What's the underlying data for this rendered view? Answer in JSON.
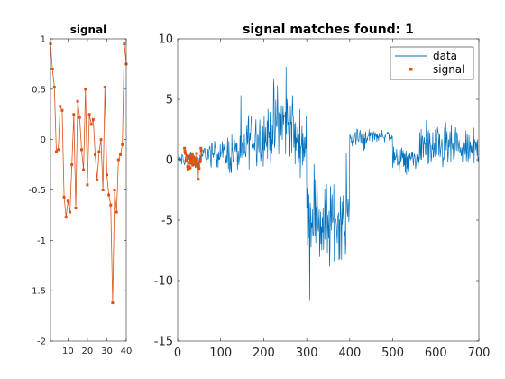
{
  "chart_data": [
    {
      "type": "line",
      "title": "signal",
      "xlabel": "",
      "ylabel": "",
      "xlim": [
        1,
        40
      ],
      "ylim": [
        -2,
        1
      ],
      "xticks": [
        10,
        20,
        30,
        40
      ],
      "xtick_labels": [
        "10",
        "20",
        "30",
        "40"
      ],
      "yticks": [
        -2,
        -1.5,
        -1,
        -0.5,
        0,
        0.5,
        1
      ],
      "ytick_labels": [
        "-2",
        "-1.5",
        "-1",
        "-0.5",
        "0",
        "0.5",
        "1"
      ],
      "grid": false,
      "series": [
        {
          "color": "#D95319",
          "marker": "square",
          "x": [
            1,
            2,
            3,
            4,
            5,
            6,
            7,
            8,
            9,
            10,
            11,
            12,
            13,
            14,
            15,
            16,
            17,
            18,
            19,
            20,
            21,
            22,
            23,
            24,
            25,
            26,
            27,
            28,
            29,
            30,
            31,
            32,
            33,
            34,
            35,
            36,
            37,
            38,
            39,
            40
          ],
          "y": [
            0.95,
            0.7,
            0.52,
            -0.12,
            -0.1,
            0.33,
            0.29,
            -0.57,
            -0.77,
            -0.61,
            -0.72,
            -0.25,
            0.25,
            -0.68,
            0.38,
            0.22,
            -0.1,
            -0.3,
            0.5,
            -0.45,
            0.25,
            0.15,
            0.2,
            -0.15,
            -0.4,
            -0.12,
            0.0,
            -0.5,
            0.52,
            -0.35,
            -0.55,
            -0.65,
            -1.62,
            -0.5,
            -0.72,
            -0.2,
            -0.15,
            -0.05,
            0.95,
            0.75
          ]
        }
      ]
    },
    {
      "type": "line",
      "title": "signal matches found: 1",
      "xlabel": "",
      "ylabel": "",
      "xlim": [
        0,
        700
      ],
      "ylim": [
        -15,
        10
      ],
      "xticks": [
        0,
        100,
        200,
        300,
        400,
        500,
        600,
        700
      ],
      "xtick_labels": [
        "0",
        "100",
        "200",
        "300",
        "400",
        "500",
        "600",
        "700"
      ],
      "yticks": [
        -15,
        -10,
        -5,
        0,
        5,
        10
      ],
      "ytick_labels": [
        "-15",
        "-10",
        "-5",
        "0",
        "5",
        "10"
      ],
      "grid": false,
      "legend_position": "top-right",
      "series": [
        {
          "name": "data",
          "color": "#0072BD",
          "x_start": 1,
          "segments": [
            {
              "from": 1,
              "to": 60,
              "center": 0.0,
              "amp": 0.9
            },
            {
              "from": 60,
              "to": 110,
              "center": 0.5,
              "amp": 1.5
            },
            {
              "from": 110,
              "to": 160,
              "center": 0.5,
              "amp": 2.5
            },
            {
              "from": 160,
              "to": 220,
              "center": 2.0,
              "amp": 3.5
            },
            {
              "from": 220,
              "to": 270,
              "center": 3.0,
              "amp": 4.5
            },
            {
              "from": 270,
              "to": 300,
              "center": 1.5,
              "amp": 3.5
            },
            {
              "from": 300,
              "to": 330,
              "center": -4.5,
              "amp": 5.0
            },
            {
              "from": 330,
              "to": 360,
              "center": -5.5,
              "amp": 5.5
            },
            {
              "from": 360,
              "to": 400,
              "center": -5.0,
              "amp": 4.5
            },
            {
              "from": 400,
              "to": 440,
              "center": 1.8,
              "amp": 1.5
            },
            {
              "from": 440,
              "to": 500,
              "center": 2.0,
              "amp": 0.8
            },
            {
              "from": 500,
              "to": 560,
              "center": 0.0,
              "amp": 1.5
            },
            {
              "from": 560,
              "to": 640,
              "center": 1.0,
              "amp": 2.5
            },
            {
              "from": 640,
              "to": 700,
              "center": 0.8,
              "amp": 2.0
            }
          ]
        },
        {
          "name": "signal",
          "color": "#D95319",
          "marker": "square",
          "x": [
            1,
            2,
            3,
            4,
            5,
            6,
            7,
            8,
            9,
            10,
            11,
            12,
            13,
            14,
            15,
            16,
            17,
            18,
            19,
            20,
            21,
            22,
            23,
            24,
            25,
            26,
            27,
            28,
            29,
            30,
            31,
            32,
            33,
            34,
            35,
            36,
            37,
            38,
            39,
            40
          ],
          "y": [
            0.95,
            0.7,
            0.52,
            -0.12,
            -0.1,
            0.33,
            0.29,
            -0.57,
            -0.77,
            -0.61,
            -0.72,
            -0.25,
            0.25,
            -0.68,
            0.38,
            0.22,
            -0.1,
            -0.3,
            0.5,
            -0.45,
            0.25,
            0.15,
            0.2,
            -0.15,
            -0.4,
            -0.12,
            0.0,
            -0.5,
            0.52,
            -0.35,
            -0.55,
            -0.65,
            -1.62,
            -0.5,
            -0.72,
            -0.2,
            -0.15,
            -0.05,
            0.95,
            0.75
          ],
          "x_offset": 15
        }
      ]
    }
  ]
}
